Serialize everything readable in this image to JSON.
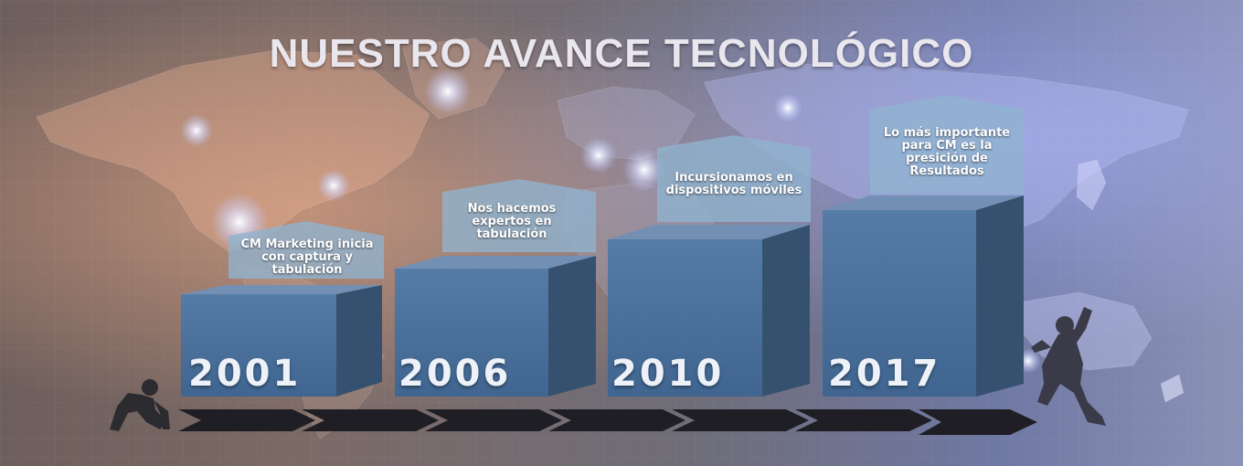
{
  "title": "NUESTRO AVANCE TECNOLÓGICO",
  "milestones": [
    {
      "year": "2001",
      "text": "CM Marketing inicia con captura y tabulación"
    },
    {
      "year": "2006",
      "text": "Nos hacemos expertos en tabulación"
    },
    {
      "year": "2010",
      "text": "Incursionamos en dispositivos móviles"
    },
    {
      "year": "2017",
      "text": "Lo más importante para CM es la presición de Resultados"
    }
  ],
  "colors": {
    "block_front": "#4a6f97",
    "block_top": "#7390b4",
    "block_side": "#36516f",
    "label_fill": "#8fb4cf",
    "arrow": "#1e1e24"
  },
  "icons": [
    "world-map",
    "runner-start-silhouette",
    "runner-finish-silhouette",
    "chevron-arrows"
  ]
}
